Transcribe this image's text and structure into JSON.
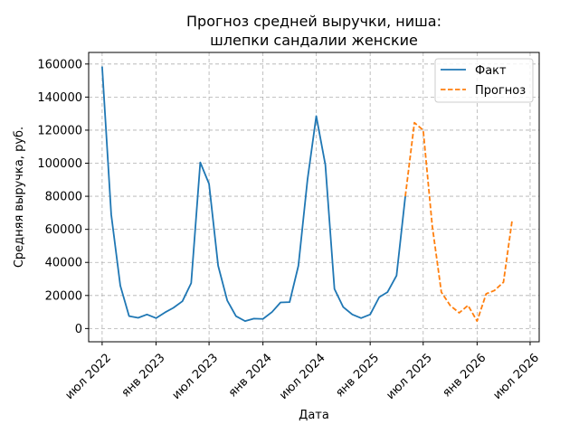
{
  "chart_data": {
    "type": "line",
    "title": "Прогноз средней выручки, ниша:",
    "subtitle": "шлепки сандалии женские",
    "xlabel": "Дата",
    "ylabel": "Средняя выручка, руб.",
    "ylim": [
      -8000,
      167000
    ],
    "xlim": [
      "2022-05-16",
      "2026-08-01"
    ],
    "grid": true,
    "legend_position": "top-right",
    "yticks": [
      {
        "value": 0,
        "label": "0"
      },
      {
        "value": 20000,
        "label": "20000"
      },
      {
        "value": 40000,
        "label": "40000"
      },
      {
        "value": 60000,
        "label": "60000"
      },
      {
        "value": 80000,
        "label": "80000"
      },
      {
        "value": 100000,
        "label": "100000"
      },
      {
        "value": 120000,
        "label": "120000"
      },
      {
        "value": 140000,
        "label": "140000"
      },
      {
        "value": 160000,
        "label": "160000"
      }
    ],
    "xticks": [
      {
        "date": "2022-07-01",
        "label": "июл 2022"
      },
      {
        "date": "2023-01-01",
        "label": "янв 2023"
      },
      {
        "date": "2023-07-01",
        "label": "июл 2023"
      },
      {
        "date": "2024-01-01",
        "label": "янв 2024"
      },
      {
        "date": "2024-07-01",
        "label": "июл 2024"
      },
      {
        "date": "2025-01-01",
        "label": "янв 2025"
      },
      {
        "date": "2025-07-01",
        "label": "июл 2025"
      },
      {
        "date": "2026-01-01",
        "label": "янв 2026"
      },
      {
        "date": "2026-07-01",
        "label": "июл 2026"
      }
    ],
    "series": [
      {
        "name": "Факт",
        "color": "#1f77b4",
        "style": "solid",
        "points": [
          {
            "x": "2022-07-01",
            "y": 158500
          },
          {
            "x": "2022-08-01",
            "y": 69000
          },
          {
            "x": "2022-09-01",
            "y": 26000
          },
          {
            "x": "2022-10-01",
            "y": 7500
          },
          {
            "x": "2022-11-01",
            "y": 6500
          },
          {
            "x": "2022-12-01",
            "y": 8500
          },
          {
            "x": "2023-01-01",
            "y": 6300
          },
          {
            "x": "2023-02-01",
            "y": 9800
          },
          {
            "x": "2023-03-01",
            "y": 12500
          },
          {
            "x": "2023-04-01",
            "y": 16500
          },
          {
            "x": "2023-05-01",
            "y": 27500
          },
          {
            "x": "2023-06-01",
            "y": 100500
          },
          {
            "x": "2023-07-01",
            "y": 87500
          },
          {
            "x": "2023-08-01",
            "y": 38000
          },
          {
            "x": "2023-09-01",
            "y": 17000
          },
          {
            "x": "2023-10-01",
            "y": 7500
          },
          {
            "x": "2023-11-01",
            "y": 4500
          },
          {
            "x": "2023-12-01",
            "y": 6000
          },
          {
            "x": "2024-01-01",
            "y": 5800
          },
          {
            "x": "2024-02-01",
            "y": 10000
          },
          {
            "x": "2024-03-01",
            "y": 15800
          },
          {
            "x": "2024-04-01",
            "y": 16000
          },
          {
            "x": "2024-05-01",
            "y": 38000
          },
          {
            "x": "2024-06-01",
            "y": 90000
          },
          {
            "x": "2024-07-01",
            "y": 128500
          },
          {
            "x": "2024-08-01",
            "y": 99000
          },
          {
            "x": "2024-09-01",
            "y": 24000
          },
          {
            "x": "2024-10-01",
            "y": 13000
          },
          {
            "x": "2024-11-01",
            "y": 8500
          },
          {
            "x": "2024-12-01",
            "y": 6300
          },
          {
            "x": "2025-01-01",
            "y": 8500
          },
          {
            "x": "2025-02-01",
            "y": 19000
          },
          {
            "x": "2025-03-01",
            "y": 22000
          },
          {
            "x": "2025-04-01",
            "y": 32000
          },
          {
            "x": "2025-05-01",
            "y": 80000
          }
        ]
      },
      {
        "name": "Прогноз",
        "color": "#ff7f0e",
        "style": "dashed",
        "points": [
          {
            "x": "2025-05-01",
            "y": 80000
          },
          {
            "x": "2025-06-01",
            "y": 124500
          },
          {
            "x": "2025-07-01",
            "y": 120000
          },
          {
            "x": "2025-08-01",
            "y": 62000
          },
          {
            "x": "2025-09-01",
            "y": 22000
          },
          {
            "x": "2025-10-01",
            "y": 14000
          },
          {
            "x": "2025-11-01",
            "y": 9500
          },
          {
            "x": "2025-12-01",
            "y": 14000
          },
          {
            "x": "2026-01-01",
            "y": 4500
          },
          {
            "x": "2026-02-01",
            "y": 21000
          },
          {
            "x": "2026-03-01",
            "y": 23000
          },
          {
            "x": "2026-04-01",
            "y": 28000
          },
          {
            "x": "2026-05-01",
            "y": 66000
          }
        ]
      }
    ]
  }
}
